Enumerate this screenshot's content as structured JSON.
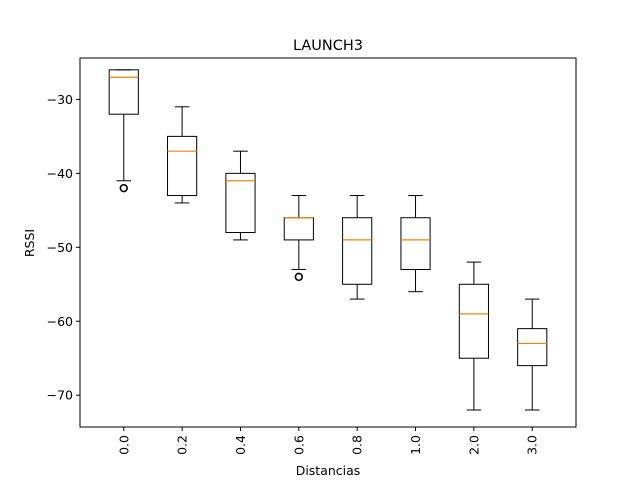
{
  "chart_data": {
    "type": "box",
    "title": "LAUNCH3",
    "xlabel": "Distancias",
    "ylabel": "RSSI",
    "categories": [
      "0.0",
      "0.2",
      "0.4",
      "0.6",
      "0.8",
      "1.0",
      "2.0",
      "3.0"
    ],
    "ylim": [
      -74.3,
      -24.4
    ],
    "yticks": [
      -70,
      -60,
      -50,
      -40,
      -30
    ],
    "grid": false,
    "boxes": [
      {
        "category": "0.0",
        "whisker_low": -41,
        "q1": -32,
        "median": -27,
        "q3": -26,
        "whisker_high": -26,
        "outliers": [
          -42
        ]
      },
      {
        "category": "0.2",
        "whisker_low": -44,
        "q1": -43,
        "median": -37,
        "q3": -35,
        "whisker_high": -31,
        "outliers": []
      },
      {
        "category": "0.4",
        "whisker_low": -49,
        "q1": -48,
        "median": -41,
        "q3": -40,
        "whisker_high": -37,
        "outliers": []
      },
      {
        "category": "0.6",
        "whisker_low": -53,
        "q1": -49,
        "median": -46,
        "q3": -46,
        "whisker_high": -43,
        "outliers": [
          -54
        ]
      },
      {
        "category": "0.8",
        "whisker_low": -57,
        "q1": -55,
        "median": -49,
        "q3": -46,
        "whisker_high": -43,
        "outliers": []
      },
      {
        "category": "1.0",
        "whisker_low": -56,
        "q1": -53,
        "median": -49,
        "q3": -46,
        "whisker_high": -43,
        "outliers": []
      },
      {
        "category": "2.0",
        "whisker_low": -72,
        "q1": -65,
        "median": -59,
        "q3": -55,
        "whisker_high": -52,
        "outliers": []
      },
      {
        "category": "3.0",
        "whisker_low": -72,
        "q1": -66,
        "median": -63,
        "q3": -61,
        "whisker_high": -57,
        "outliers": []
      }
    ],
    "colors": {
      "box": "#000000",
      "median": "#ff7f0e",
      "background": "#ffffff"
    }
  }
}
